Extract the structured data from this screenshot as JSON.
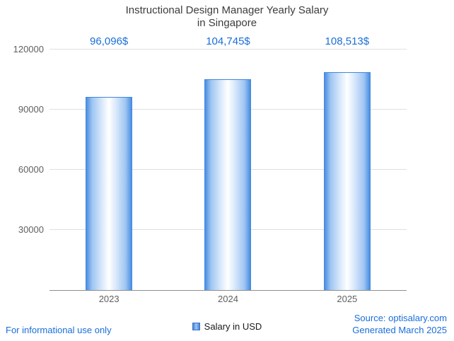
{
  "title": {
    "line1": "Instructional Design Manager Yearly Salary",
    "line2": "in Singapore"
  },
  "chart_data": {
    "type": "bar",
    "title": "Instructional Design Manager Yearly Salary in Singapore",
    "categories": [
      "2023",
      "2024",
      "2025"
    ],
    "values": [
      96096,
      104745,
      108513
    ],
    "value_labels": [
      "96,096$",
      "104,745$",
      "108,513$"
    ],
    "series": [
      {
        "name": "Salary in USD",
        "values": [
          96096,
          104745,
          108513
        ]
      }
    ],
    "xlabel": "",
    "ylabel": "",
    "ylim": [
      0,
      120000
    ],
    "yticks": [
      30000,
      60000,
      90000,
      120000
    ],
    "ytick_labels": [
      "30000",
      "60000",
      "90000",
      "120000"
    ],
    "grid": true,
    "legend_position": "bottom"
  },
  "legend": {
    "label": "Salary in USD"
  },
  "footer": {
    "left": "For informational use only",
    "source": "Source: optisalary.com",
    "generated": "Generated March 2025"
  },
  "colors": {
    "accent_text": "#1a6ed8",
    "title_text": "#3c3c3c",
    "tick_text": "#5f5f5f",
    "grid": "#e0e0e0",
    "axis": "#8f8f8f",
    "bar_edge": "#3f87de",
    "bar_light": "#9ec5f2",
    "bar_mid": "#ffffff",
    "swatch_border": "#4472c4"
  }
}
